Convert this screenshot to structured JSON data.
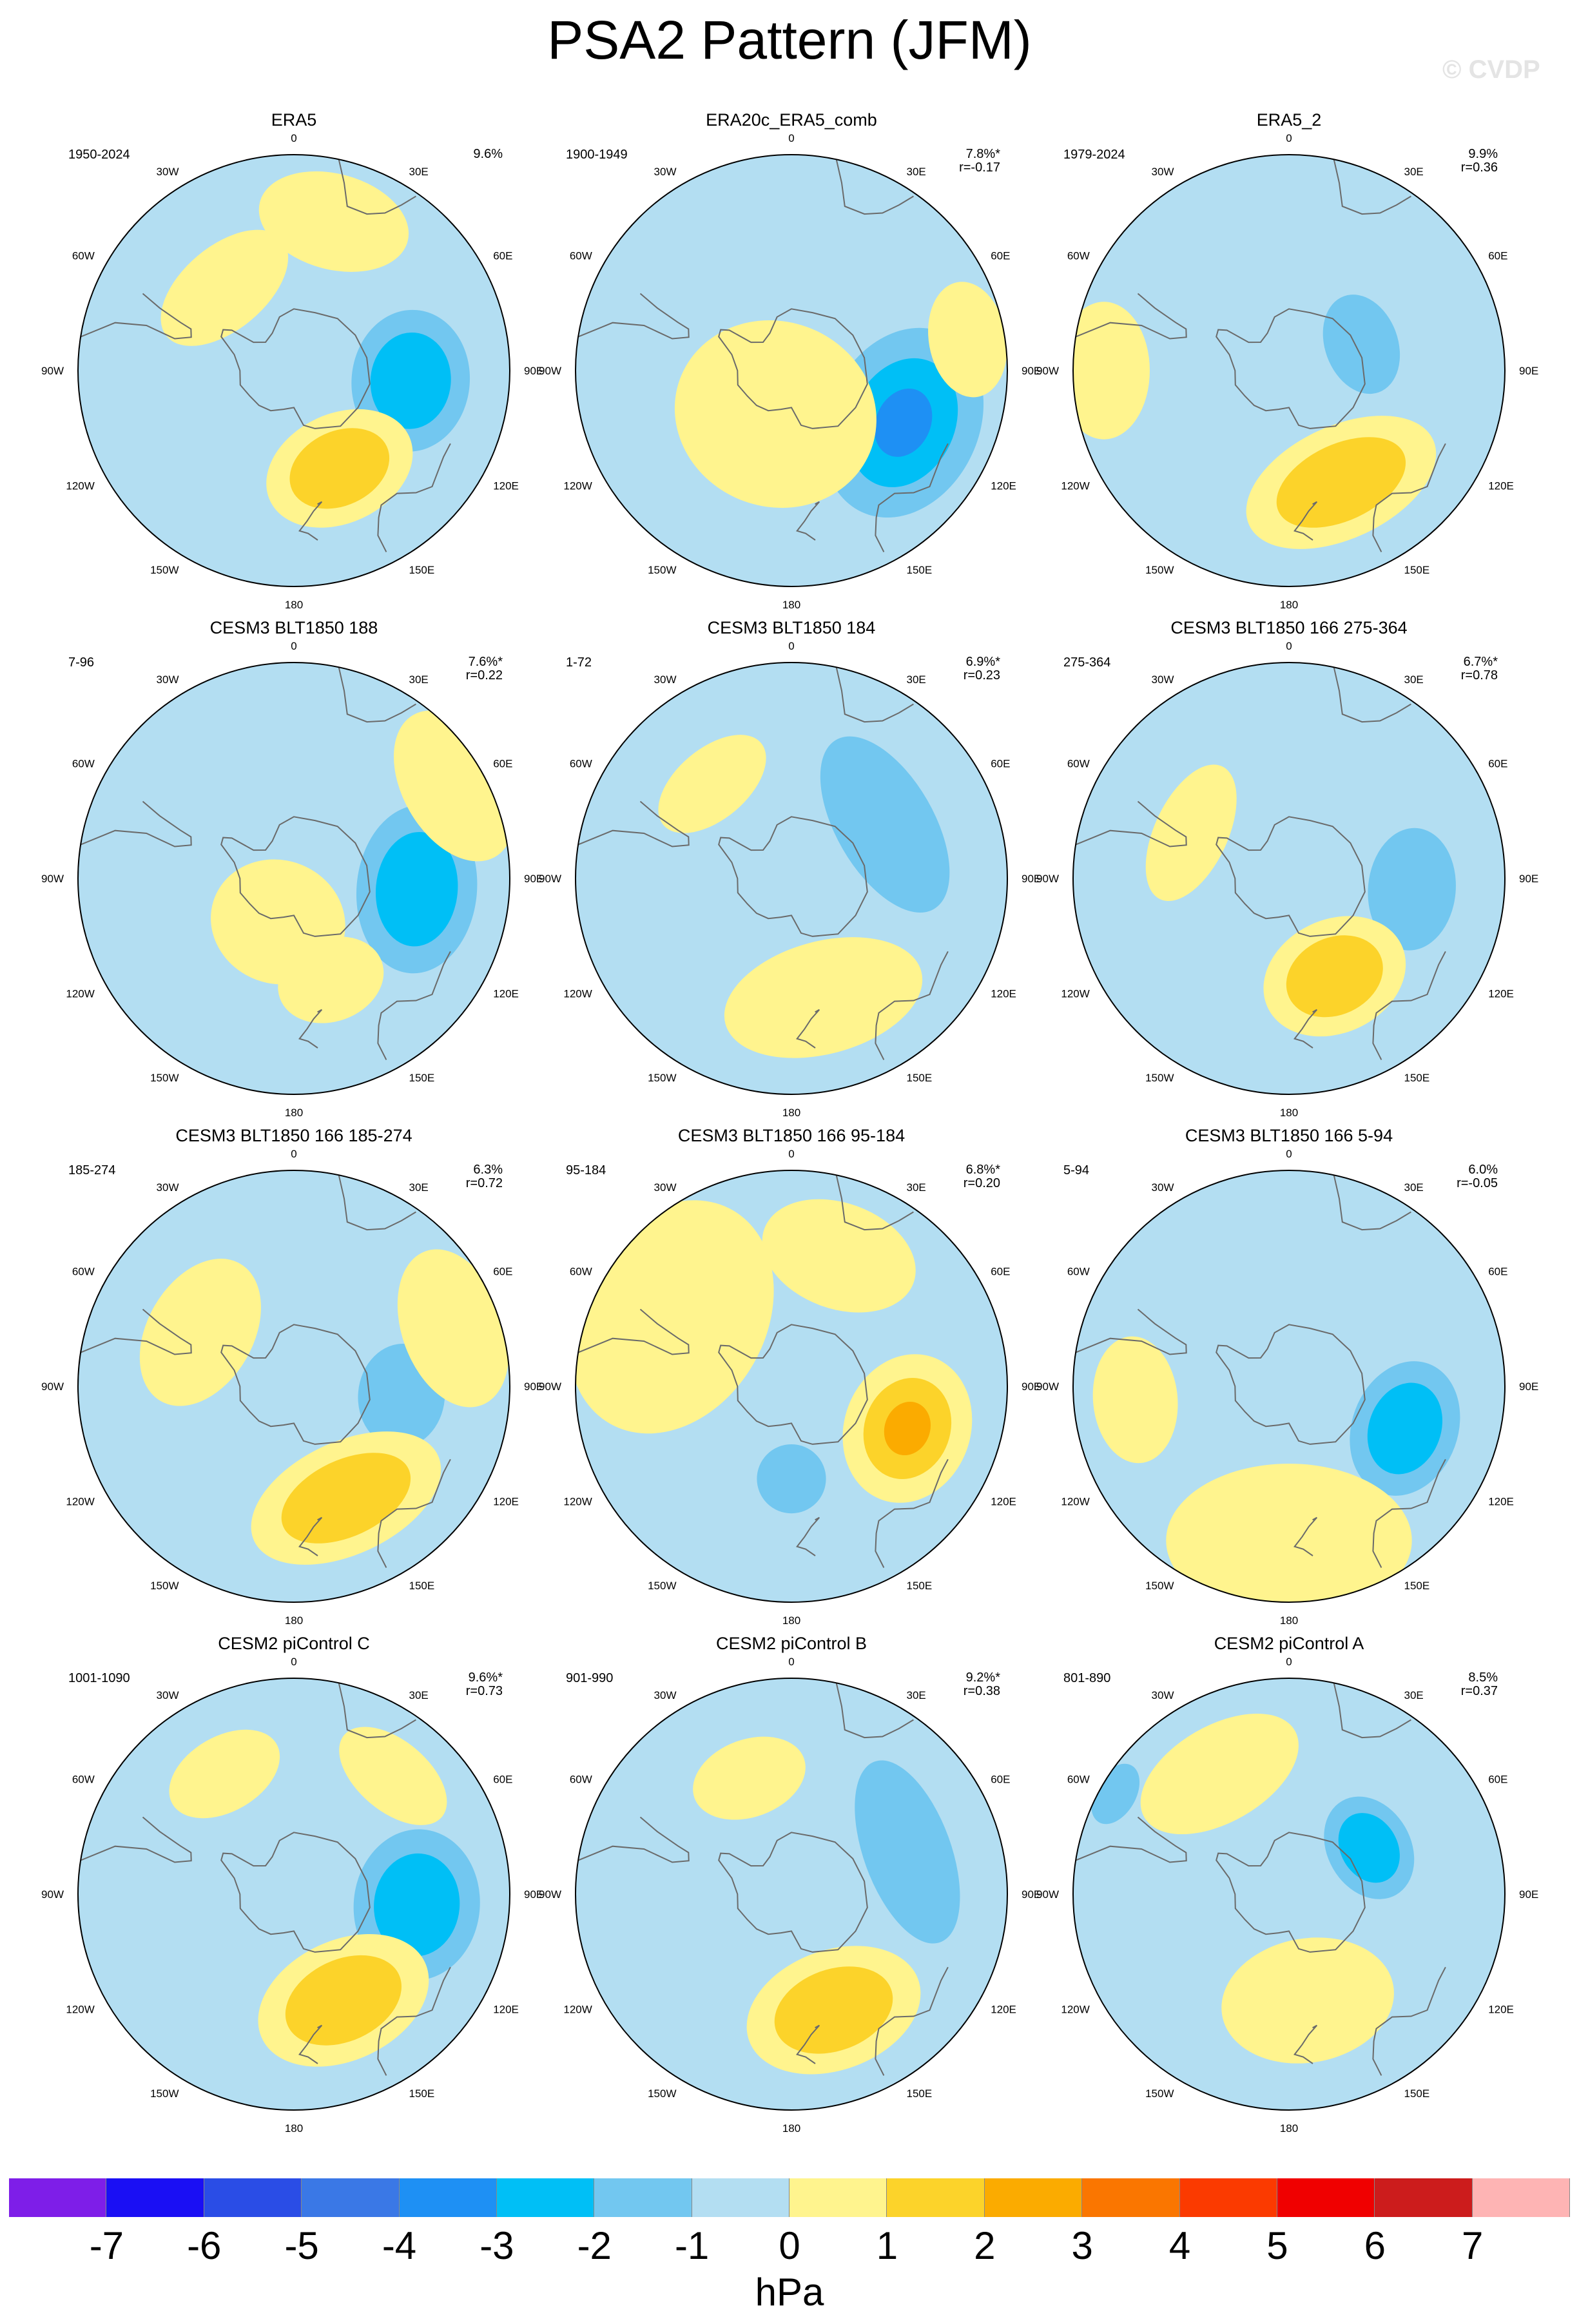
{
  "title": "PSA2 Pattern (JFM)",
  "watermark": "© CVDP",
  "units": "hPa",
  "longitude_labels": [
    "0",
    "30E",
    "60E",
    "90E",
    "120E",
    "150E",
    "180",
    "150W",
    "120W",
    "90W",
    "60W",
    "30W"
  ],
  "colorbar": {
    "colors": [
      "#7e1ee8",
      "#1a0ff4",
      "#2a4de6",
      "#3a78e6",
      "#1e90f4",
      "#00bff6",
      "#72c7f0",
      "#b3def2",
      "#fff48e",
      "#fcd32a",
      "#fbab00",
      "#fa7600",
      "#fb3a00",
      "#f00000",
      "#cc1c1c",
      "#feb4b4"
    ],
    "labels": [
      "-7",
      "-6",
      "-5",
      "-4",
      "-3",
      "-2",
      "-1",
      "0",
      "1",
      "2",
      "3",
      "4",
      "5",
      "6",
      "7"
    ]
  },
  "panels": [
    {
      "title": "ERA5",
      "years": "1950-2024",
      "pct": "9.6%",
      "corr": "",
      "blobs": [
        {
          "sign": -1,
          "level": 2,
          "lon": 95,
          "lat": -52,
          "size": 0.3,
          "stretch": 1.2
        },
        {
          "sign": 1,
          "level": 2,
          "lon": 155,
          "lat": -55,
          "size": 0.3,
          "stretch": 1.4
        },
        {
          "sign": 1,
          "level": 1,
          "lon": 15,
          "lat": -40,
          "size": 0.28,
          "stretch": 1.6
        },
        {
          "sign": 1,
          "level": 1,
          "lon": 320,
          "lat": -55,
          "size": 0.26,
          "stretch": 1.8
        }
      ]
    },
    {
      "title": "ERA20c_ERA5_comb",
      "years": "1900-1949",
      "pct": "7.8%*",
      "corr": "r=-0.17",
      "blobs": [
        {
          "sign": -1,
          "level": 3,
          "lon": 115,
          "lat": -50,
          "size": 0.4,
          "stretch": 1.3
        },
        {
          "sign": 1,
          "level": 1,
          "lon": 200,
          "lat": -75,
          "size": 0.45,
          "stretch": 1.1
        },
        {
          "sign": 1,
          "level": 1,
          "lon": 80,
          "lat": -32,
          "size": 0.22,
          "stretch": 1.5
        }
      ]
    },
    {
      "title": "ERA5_2",
      "years": "1979-2024",
      "pct": "9.9%",
      "corr": "r=0.36",
      "blobs": [
        {
          "sign": 1,
          "level": 2,
          "lon": 155,
          "lat": -50,
          "size": 0.35,
          "stretch": 1.8
        },
        {
          "sign": -1,
          "level": 1,
          "lon": 70,
          "lat": -65,
          "size": 0.2,
          "stretch": 1.4
        },
        {
          "sign": 1,
          "level": 1,
          "lon": 270,
          "lat": -30,
          "size": 0.26,
          "stretch": 1.5
        }
      ]
    },
    {
      "title": "CESM3 BLT1850 188",
      "years": "7-96",
      "pct": "7.6%*",
      "corr": "r=0.22",
      "blobs": [
        {
          "sign": -1,
          "level": 2,
          "lon": 95,
          "lat": -50,
          "size": 0.33,
          "stretch": 1.4
        },
        {
          "sign": 1,
          "level": 1,
          "lon": 160,
          "lat": -55,
          "size": 0.22,
          "stretch": 1.3
        },
        {
          "sign": 1,
          "level": 1,
          "lon": 200,
          "lat": -75,
          "size": 0.3,
          "stretch": 1.1
        },
        {
          "sign": 1,
          "level": 1,
          "lon": 60,
          "lat": -30,
          "size": 0.3,
          "stretch": 1.6
        }
      ]
    },
    {
      "title": "CESM3 BLT1850 184",
      "years": "1-72",
      "pct": "6.9%*",
      "corr": "r=0.23",
      "blobs": [
        {
          "sign": -1,
          "level": 1,
          "lon": 60,
          "lat": -55,
          "size": 0.32,
          "stretch": 2.0
        },
        {
          "sign": 1,
          "level": 1,
          "lon": 165,
          "lat": -50,
          "size": 0.35,
          "stretch": 1.8
        },
        {
          "sign": 1,
          "level": 1,
          "lon": 320,
          "lat": -50,
          "size": 0.22,
          "stretch": 1.8
        }
      ]
    },
    {
      "title": "CESM3 BLT1850 166 275-364",
      "years": "275-364",
      "pct": "6.7%*",
      "corr": "r=0.78",
      "blobs": [
        {
          "sign": -1,
          "level": 1,
          "lon": 95,
          "lat": -50,
          "size": 0.24,
          "stretch": 1.4
        },
        {
          "sign": 1,
          "level": 2,
          "lon": 155,
          "lat": -55,
          "size": 0.3,
          "stretch": 1.3
        },
        {
          "sign": 1,
          "level": 1,
          "lon": 295,
          "lat": -55,
          "size": 0.24,
          "stretch": 2.0
        }
      ]
    },
    {
      "title": "CESM3 BLT1850 166 185-274",
      "years": "185-274",
      "pct": "6.3%",
      "corr": "r=0.72",
      "blobs": [
        {
          "sign": -1,
          "level": 1,
          "lon": 95,
          "lat": -55,
          "size": 0.22,
          "stretch": 1.2
        },
        {
          "sign": 1,
          "level": 2,
          "lon": 155,
          "lat": -50,
          "size": 0.35,
          "stretch": 1.8
        },
        {
          "sign": 1,
          "level": 1,
          "lon": 300,
          "lat": -55,
          "size": 0.3,
          "stretch": 1.5
        },
        {
          "sign": 1,
          "level": 1,
          "lon": 70,
          "lat": -35,
          "size": 0.3,
          "stretch": 1.6
        }
      ]
    },
    {
      "title": "CESM3 BLT1850 166 95-184",
      "years": "95-184",
      "pct": "6.8%*",
      "corr": "r=0.20",
      "blobs": [
        {
          "sign": 1,
          "level": 3,
          "lon": 110,
          "lat": -50,
          "size": 0.32,
          "stretch": 1.2
        },
        {
          "sign": 1,
          "level": 1,
          "lon": 300,
          "lat": -45,
          "size": 0.5,
          "stretch": 1.3
        },
        {
          "sign": 1,
          "level": 1,
          "lon": 20,
          "lat": -45,
          "size": 0.3,
          "stretch": 1.5
        },
        {
          "sign": -1,
          "level": 1,
          "lon": 180,
          "lat": -60,
          "size": 0.16,
          "stretch": 1.0
        }
      ]
    },
    {
      "title": "CESM3 BLT1850 166 5-94",
      "years": "5-94",
      "pct": "6.0%",
      "corr": "r=-0.05",
      "blobs": [
        {
          "sign": -1,
          "level": 2,
          "lon": 110,
          "lat": -50,
          "size": 0.28,
          "stretch": 1.3
        },
        {
          "sign": 1,
          "level": 1,
          "lon": 180,
          "lat": -40,
          "size": 0.45,
          "stretch": 1.6
        },
        {
          "sign": 1,
          "level": 1,
          "lon": 265,
          "lat": -40,
          "size": 0.24,
          "stretch": 1.5
        }
      ]
    },
    {
      "title": "CESM2 piControl C",
      "years": "1001-1090",
      "pct": "9.6%*",
      "corr": "r=0.73",
      "blobs": [
        {
          "sign": -1,
          "level": 2,
          "lon": 95,
          "lat": -50,
          "size": 0.32,
          "stretch": 1.2
        },
        {
          "sign": 1,
          "level": 2,
          "lon": 155,
          "lat": -52,
          "size": 0.34,
          "stretch": 1.5
        },
        {
          "sign": 1,
          "level": 1,
          "lon": 330,
          "lat": -45,
          "size": 0.22,
          "stretch": 1.6
        },
        {
          "sign": 1,
          "level": 1,
          "lon": 40,
          "lat": -40,
          "size": 0.22,
          "stretch": 1.8
        }
      ]
    },
    {
      "title": "CESM2 piControl B",
      "years": "901-990",
      "pct": "9.2%*",
      "corr": "r=0.38",
      "blobs": [
        {
          "sign": -1,
          "level": 1,
          "lon": 70,
          "lat": -50,
          "size": 0.3,
          "stretch": 2.2
        },
        {
          "sign": 1,
          "level": 2,
          "lon": 160,
          "lat": -50,
          "size": 0.34,
          "stretch": 1.5
        },
        {
          "sign": 1,
          "level": 1,
          "lon": 340,
          "lat": -50,
          "size": 0.22,
          "stretch": 1.5
        }
      ]
    },
    {
      "title": "CESM2 piControl A",
      "years": "801-890",
      "pct": "8.5%",
      "corr": "r=0.37",
      "blobs": [
        {
          "sign": -1,
          "level": 2,
          "lon": 60,
          "lat": -60,
          "size": 0.22,
          "stretch": 1.3
        },
        {
          "sign": 1,
          "level": 1,
          "lon": 170,
          "lat": -55,
          "size": 0.34,
          "stretch": 1.4
        },
        {
          "sign": 1,
          "level": 1,
          "lon": 330,
          "lat": -45,
          "size": 0.3,
          "stretch": 1.8
        },
        {
          "sign": -1,
          "level": 1,
          "lon": 300,
          "lat": -25,
          "size": 0.12,
          "stretch": 1.6
        }
      ]
    }
  ]
}
